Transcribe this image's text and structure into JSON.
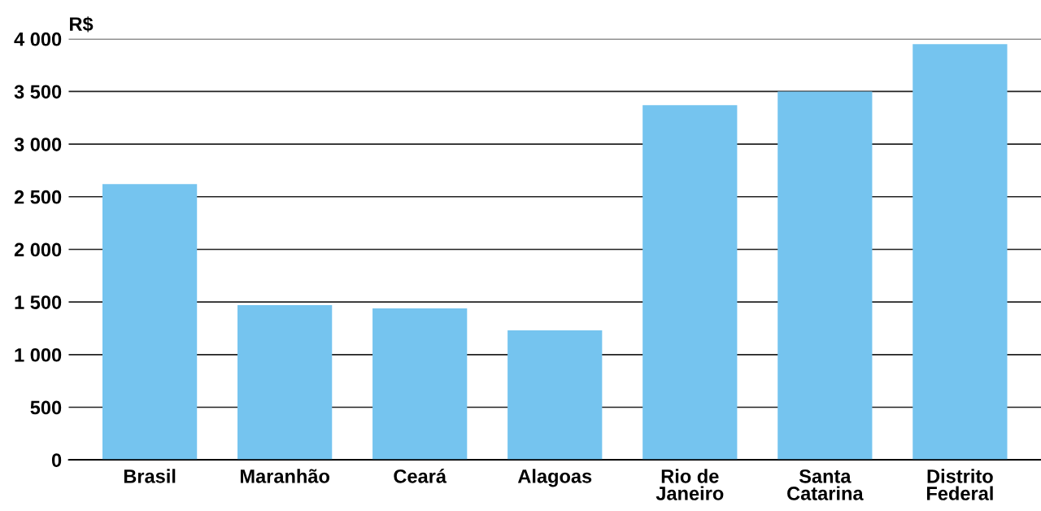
{
  "chart_data": {
    "type": "bar",
    "categories": [
      "Brasil",
      "Maranhão",
      "Ceará",
      "Alagoas",
      "Rio de\nJaneiro",
      "Santa\nCatarina",
      "Distrito\nFederal"
    ],
    "values": [
      2620,
      1470,
      1440,
      1230,
      3370,
      3500,
      3950
    ],
    "color": "#75c4ef",
    "ylabel": "R$",
    "ylim": [
      0,
      4000
    ],
    "yticks": [
      {
        "value": 0,
        "label": "0"
      },
      {
        "value": 500,
        "label": "500"
      },
      {
        "value": 1000,
        "label": "1 000"
      },
      {
        "value": 1500,
        "label": "1 500"
      },
      {
        "value": 2000,
        "label": "2 000"
      },
      {
        "value": 2500,
        "label": "2 500"
      },
      {
        "value": 3000,
        "label": "3 000"
      },
      {
        "value": 3500,
        "label": "3 500"
      },
      {
        "value": 4000,
        "label": "4 000"
      }
    ],
    "grid": "y"
  }
}
